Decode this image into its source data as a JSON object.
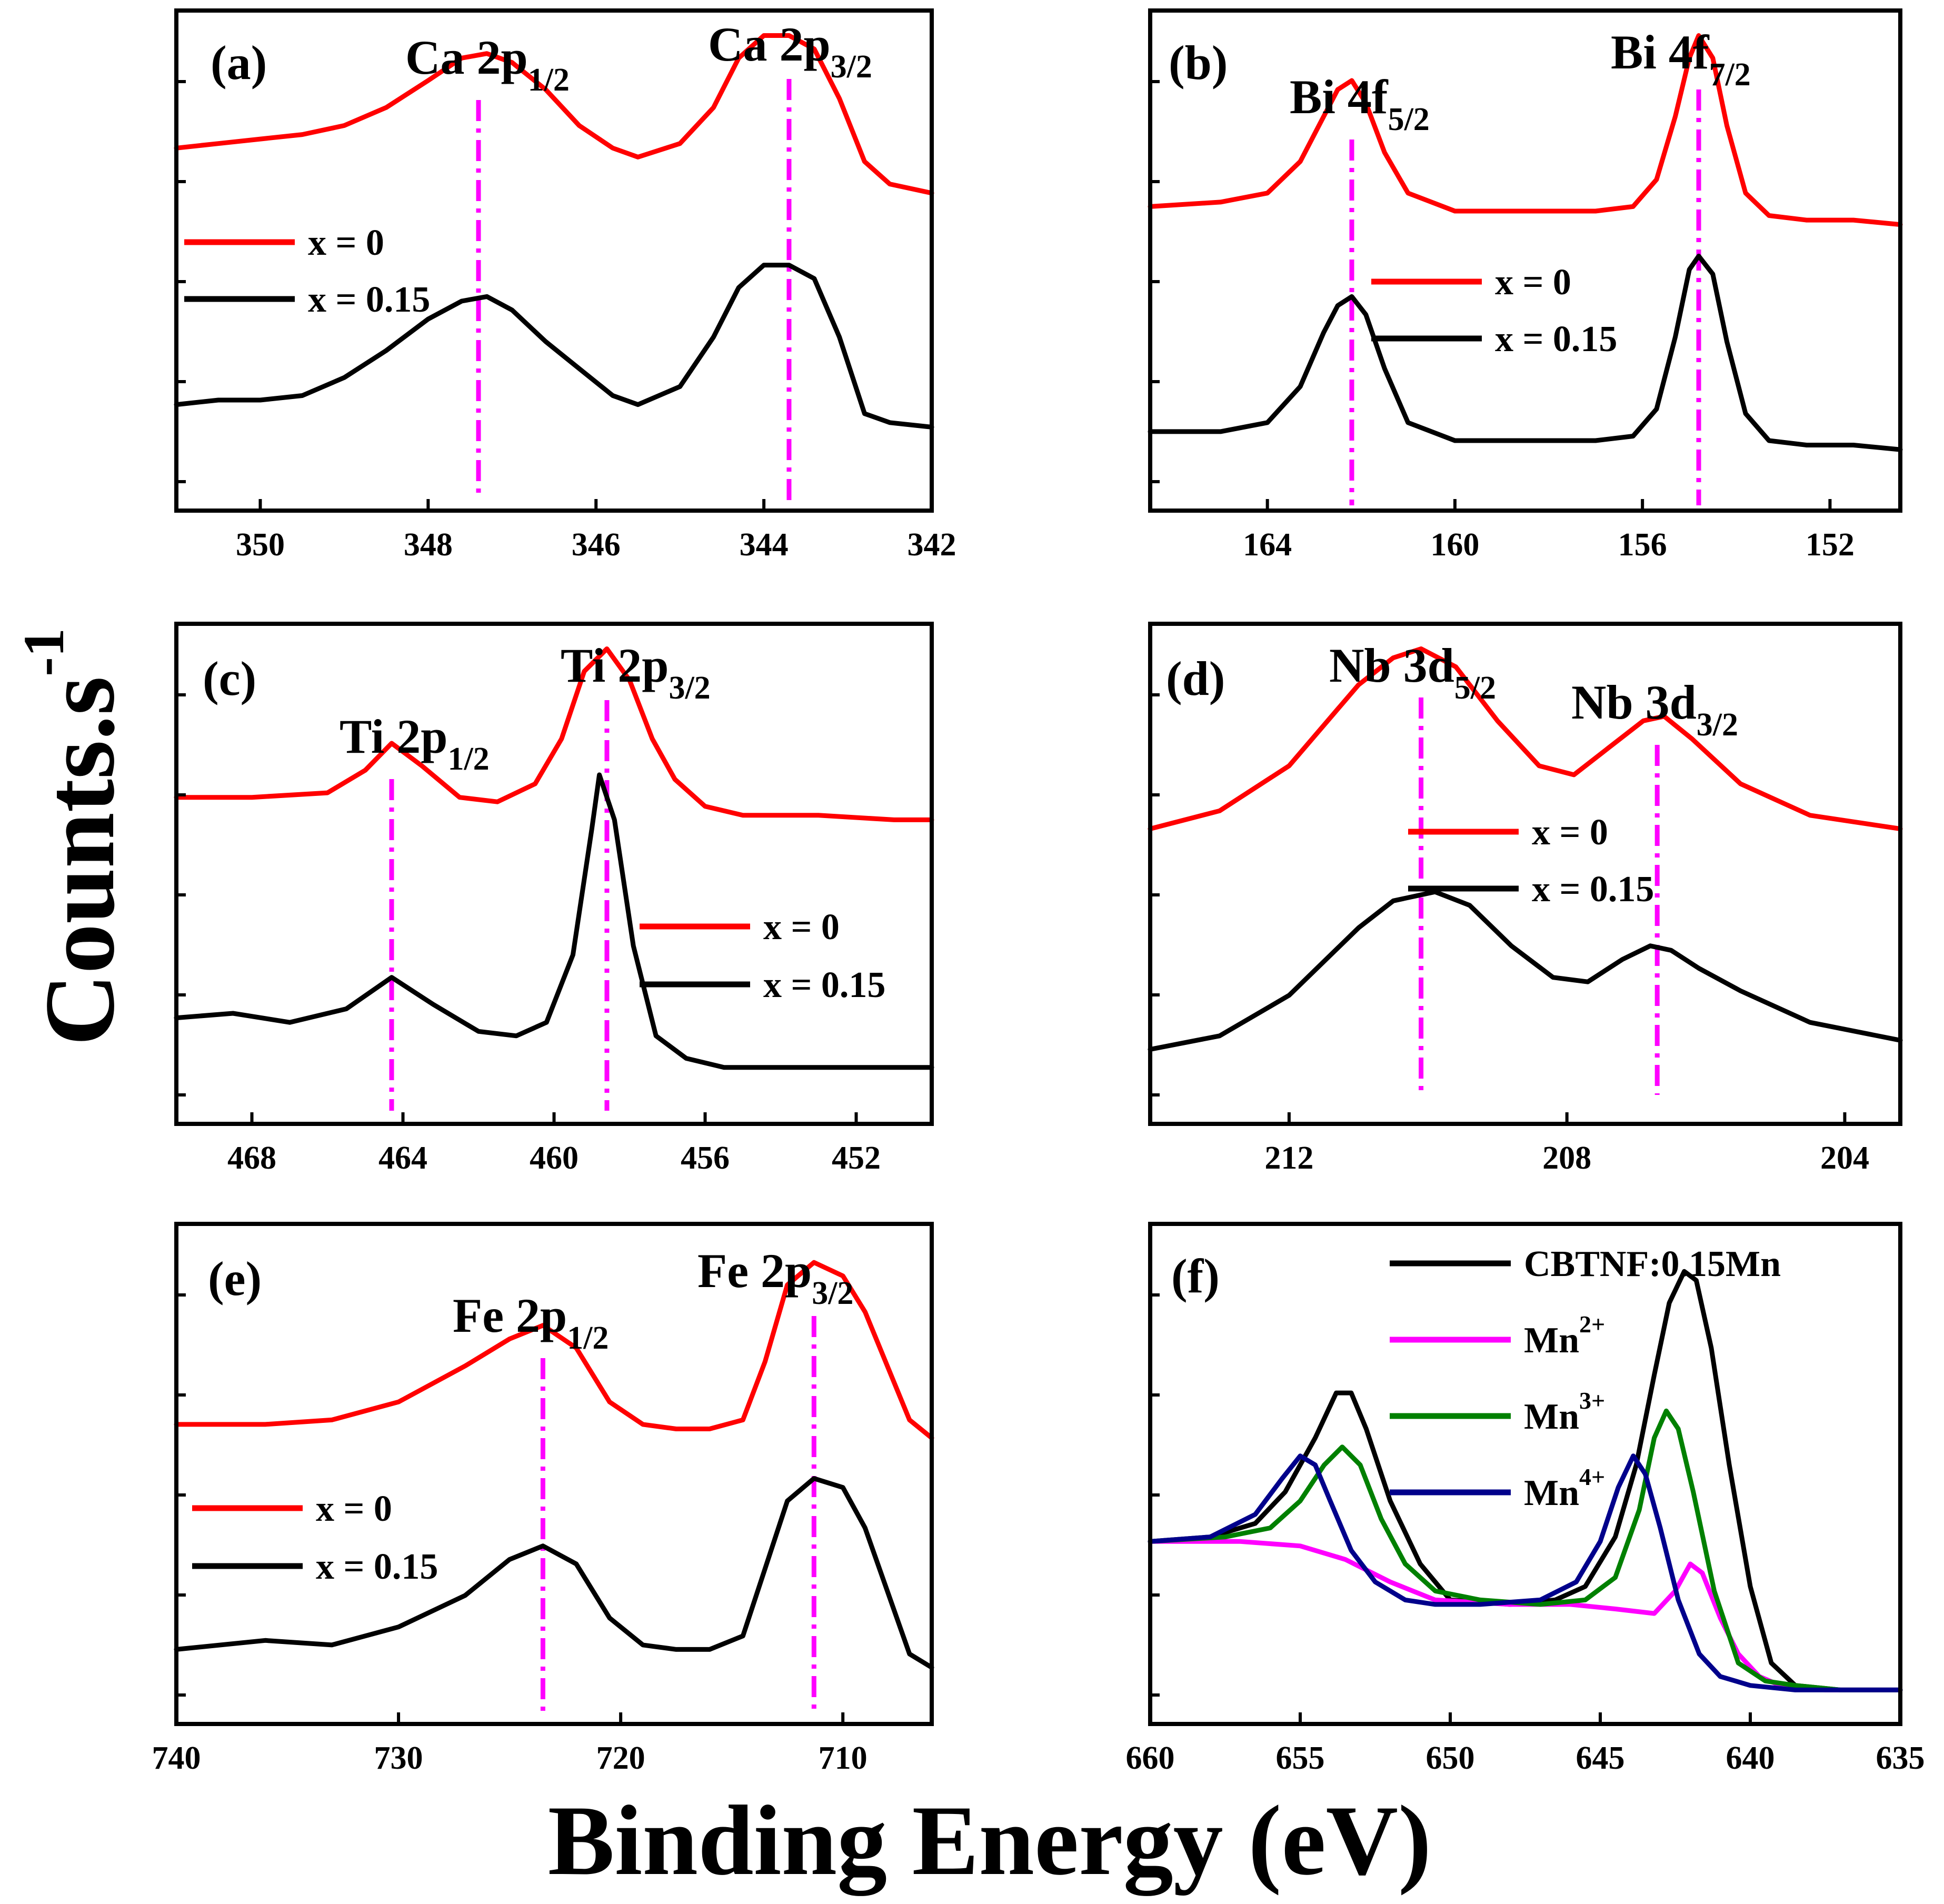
{
  "chart_data": {
    "type": "line",
    "xlabel": "Binding Energy (eV)",
    "ylabel": "Counts.s",
    "ylabel_superscript": "-1",
    "colors": {
      "x0": "#ff0000",
      "x015": "#000000",
      "mn2": "#ff00ff",
      "mn3": "#008000",
      "mn4": "#00008b",
      "ref": "#ff00ff"
    },
    "panels": [
      {
        "id": "a",
        "label": "(a)",
        "xlim": [
          351,
          342
        ],
        "ylim": [
          0,
          1
        ],
        "xticks": [
          350,
          348,
          346,
          344,
          342
        ],
        "tick_labels": [
          "350",
          "348",
          "346",
          "344",
          "342"
        ],
        "peaks": [
          {
            "base": "Ca 2p",
            "sub": "1/2",
            "x": 347.4
          },
          {
            "base": "Ca 2p",
            "sub": "3/2",
            "x": 343.7
          }
        ],
        "legend": [
          "x = 0",
          "x = 0.15"
        ],
        "series": [
          {
            "name": "x = 0",
            "x": [
              351,
              350.5,
              350,
              349.5,
              349,
              348.5,
              348,
              347.6,
              347.3,
              347,
              346.6,
              346.2,
              345.8,
              345.5,
              345,
              344.6,
              344.3,
              344,
              343.7,
              343.4,
              343.1,
              342.8,
              342.5,
              342
            ],
            "y": [
              0.75,
              0.76,
              0.77,
              0.78,
              0.8,
              0.84,
              0.9,
              0.95,
              0.96,
              0.94,
              0.88,
              0.8,
              0.75,
              0.73,
              0.76,
              0.84,
              0.95,
              1.0,
              1.0,
              0.97,
              0.86,
              0.72,
              0.67,
              0.65
            ]
          },
          {
            "name": "x = 0.15",
            "x": [
              351,
              350.5,
              350,
              349.5,
              349,
              348.5,
              348,
              347.6,
              347.3,
              347,
              346.6,
              346.2,
              345.8,
              345.5,
              345,
              344.6,
              344.3,
              344,
              343.7,
              343.4,
              343.1,
              342.8,
              342.5,
              342
            ],
            "y": [
              0.18,
              0.19,
              0.19,
              0.2,
              0.24,
              0.3,
              0.37,
              0.41,
              0.42,
              0.39,
              0.32,
              0.26,
              0.2,
              0.18,
              0.22,
              0.33,
              0.44,
              0.49,
              0.49,
              0.46,
              0.33,
              0.16,
              0.14,
              0.13
            ]
          }
        ]
      },
      {
        "id": "b",
        "label": "(b)",
        "xlim": [
          166.5,
          150.5
        ],
        "ylim": [
          0,
          1
        ],
        "xticks": [
          164,
          160,
          156,
          152
        ],
        "tick_labels": [
          "164",
          "160",
          "156",
          "152"
        ],
        "peaks": [
          {
            "base": "Bi 4f",
            "sub": "5/2",
            "x": 162.2
          },
          {
            "base": "Bi 4f",
            "sub": "7/2",
            "x": 154.8
          }
        ],
        "legend": [
          "x = 0",
          "x = 0.15"
        ],
        "series": [
          {
            "name": "x = 0",
            "x": [
              166.5,
              165,
              164,
              163.3,
              162.8,
              162.5,
              162.2,
              161.9,
              161.5,
              161,
              160,
              158,
              157,
              156.2,
              155.7,
              155.3,
              155,
              154.8,
              154.5,
              154.2,
              153.8,
              153.3,
              152.5,
              151.5,
              150.5
            ],
            "y": [
              0.62,
              0.63,
              0.65,
              0.72,
              0.82,
              0.88,
              0.9,
              0.85,
              0.74,
              0.65,
              0.61,
              0.61,
              0.61,
              0.62,
              0.68,
              0.82,
              0.95,
              1.0,
              0.95,
              0.8,
              0.65,
              0.6,
              0.59,
              0.59,
              0.58
            ]
          },
          {
            "name": "x = 0.15",
            "x": [
              166.5,
              165,
              164,
              163.3,
              162.8,
              162.5,
              162.2,
              161.9,
              161.5,
              161,
              160,
              158,
              157,
              156.2,
              155.7,
              155.3,
              155,
              154.8,
              154.5,
              154.2,
              153.8,
              153.3,
              152.5,
              151.5,
              150.5
            ],
            "y": [
              0.12,
              0.12,
              0.14,
              0.22,
              0.34,
              0.4,
              0.42,
              0.38,
              0.26,
              0.14,
              0.1,
              0.1,
              0.1,
              0.11,
              0.17,
              0.33,
              0.48,
              0.51,
              0.47,
              0.32,
              0.16,
              0.1,
              0.09,
              0.09,
              0.08
            ]
          }
        ]
      },
      {
        "id": "c",
        "label": "(c)",
        "xlim": [
          470,
          450
        ],
        "ylim": [
          0,
          1
        ],
        "xticks": [
          468,
          464,
          460,
          456,
          452
        ],
        "tick_labels": [
          "468",
          "464",
          "460",
          "456",
          "452"
        ],
        "peaks": [
          {
            "base": "Ti 2p",
            "sub": "1/2",
            "x": 464.3
          },
          {
            "base": "Ti 2p",
            "sub": "3/2",
            "x": 458.6
          }
        ],
        "legend": [
          "x = 0",
          "x = 0.15"
        ],
        "series": [
          {
            "name": "x = 0",
            "x": [
              470,
              468,
              466,
              465,
              464.3,
              463.5,
              462.5,
              461.5,
              460.5,
              459.8,
              459.2,
              458.6,
              458,
              457.4,
              456.8,
              456,
              455,
              453,
              451,
              450
            ],
            "y": [
              0.67,
              0.67,
              0.68,
              0.73,
              0.79,
              0.74,
              0.67,
              0.66,
              0.7,
              0.8,
              0.95,
              1.0,
              0.93,
              0.8,
              0.71,
              0.65,
              0.63,
              0.63,
              0.62,
              0.62
            ]
          },
          {
            "name": "x = 0.15",
            "x": [
              470,
              468.5,
              467,
              465.5,
              464.3,
              463.2,
              462,
              461,
              460.2,
              459.5,
              459,
              458.8,
              458.4,
              457.9,
              457.3,
              456.5,
              455.5,
              453,
              451,
              450
            ],
            "y": [
              0.18,
              0.19,
              0.17,
              0.2,
              0.27,
              0.21,
              0.15,
              0.14,
              0.17,
              0.32,
              0.6,
              0.72,
              0.62,
              0.34,
              0.14,
              0.09,
              0.07,
              0.07,
              0.07,
              0.07
            ]
          }
        ]
      },
      {
        "id": "d",
        "label": "(d)",
        "xlim": [
          214,
          203.2
        ],
        "ylim": [
          0,
          1
        ],
        "xticks": [
          212,
          208,
          204
        ],
        "tick_labels": [
          "212",
          "208",
          "204"
        ],
        "peaks": [
          {
            "base": "Nb 3d",
            "sub": "5/2",
            "x": 210.1
          },
          {
            "base": "Nb 3d",
            "sub": "3/2",
            "x": 206.7
          }
        ],
        "legend": [
          "x = 0",
          "x = 0.15"
        ],
        "series": [
          {
            "name": "x = 0",
            "x": [
              214,
              213,
              212,
              211,
              210.5,
              210.1,
              209.6,
              209,
              208.4,
              207.9,
              207.4,
              206.9,
              206.6,
              206.2,
              205.5,
              204.5,
              203.2
            ],
            "y": [
              0.6,
              0.64,
              0.74,
              0.92,
              0.98,
              1.0,
              0.96,
              0.84,
              0.74,
              0.72,
              0.78,
              0.84,
              0.85,
              0.8,
              0.7,
              0.63,
              0.6
            ]
          },
          {
            "name": "x = 0.15",
            "x": [
              214,
              213,
              212,
              211,
              210.5,
              209.9,
              209.4,
              208.8,
              208.2,
              207.7,
              207.2,
              206.8,
              206.5,
              206.1,
              205.5,
              204.5,
              203.2
            ],
            "y": [
              0.11,
              0.14,
              0.23,
              0.38,
              0.44,
              0.46,
              0.43,
              0.34,
              0.27,
              0.26,
              0.31,
              0.34,
              0.33,
              0.29,
              0.24,
              0.17,
              0.13
            ]
          }
        ]
      },
      {
        "id": "e",
        "label": "(e)",
        "xlim": [
          740,
          706
        ],
        "ylim": [
          0,
          1
        ],
        "xticks": [
          740,
          730,
          720,
          710
        ],
        "tick_labels": [
          "740",
          "730",
          "720",
          "710"
        ],
        "peaks": [
          {
            "base": "Fe 2p",
            "sub": "1/2",
            "x": 723.5
          },
          {
            "base": "Fe 2p",
            "sub": "3/2",
            "x": 711.3
          }
        ],
        "legend": [
          "x = 0",
          "x = 0.15"
        ],
        "series": [
          {
            "name": "x = 0",
            "x": [
              740,
              736,
              733,
              730,
              727,
              725,
              723.5,
              722,
              720.5,
              719,
              717.5,
              716,
              714.5,
              713.5,
              712.5,
              711.3,
              710,
              709,
              708,
              707,
              706
            ],
            "y": [
              0.61,
              0.61,
              0.62,
              0.66,
              0.74,
              0.8,
              0.83,
              0.78,
              0.66,
              0.61,
              0.6,
              0.6,
              0.62,
              0.75,
              0.92,
              0.97,
              0.94,
              0.86,
              0.74,
              0.62,
              0.58
            ]
          },
          {
            "name": "x = 0.15",
            "x": [
              740,
              736,
              733,
              730,
              727,
              725,
              723.5,
              722,
              720.5,
              719,
              717.5,
              716,
              714.5,
              713.5,
              712.5,
              711.3,
              710,
              709,
              708,
              707,
              706
            ],
            "y": [
              0.11,
              0.13,
              0.12,
              0.16,
              0.23,
              0.31,
              0.34,
              0.3,
              0.18,
              0.12,
              0.11,
              0.11,
              0.14,
              0.29,
              0.44,
              0.49,
              0.47,
              0.38,
              0.24,
              0.1,
              0.07
            ]
          }
        ]
      },
      {
        "id": "f",
        "label": "(f)",
        "xlim": [
          660,
          635
        ],
        "ylim": [
          0,
          1
        ],
        "xticks": [
          660,
          655,
          650,
          645,
          640,
          635
        ],
        "tick_labels": [
          "660",
          "655",
          "650",
          "645",
          "640",
          "635"
        ],
        "legend": [
          "CBTNF:0.15Mn",
          "Mn",
          "Mn",
          "Mn"
        ],
        "legend_superscripts": [
          "",
          "2+",
          "3+",
          "4+"
        ],
        "series": [
          {
            "name": "CBTNF:0.15Mn",
            "x": [
              660,
              658,
              656.5,
              655.5,
              654.5,
              653.8,
              653.3,
              652.8,
              652,
              651,
              650,
              648,
              646.5,
              645.5,
              644.5,
              643.8,
              643.2,
              642.7,
              642.2,
              641.8,
              641.3,
              640.7,
              640,
              639.3,
              638.5,
              637,
              635
            ],
            "y": [
              0.35,
              0.36,
              0.39,
              0.46,
              0.58,
              0.68,
              0.68,
              0.6,
              0.44,
              0.3,
              0.22,
              0.21,
              0.22,
              0.25,
              0.36,
              0.52,
              0.72,
              0.88,
              0.95,
              0.93,
              0.78,
              0.52,
              0.25,
              0.08,
              0.03,
              0.02,
              0.02
            ]
          },
          {
            "name": "Mn2+",
            "x": [
              660,
              657,
              655,
              653.5,
              652,
              650.5,
              648,
              646,
              644.5,
              643.2,
              642.5,
              642,
              641.6,
              641,
              640.4,
              639.7,
              639,
              637.5,
              635
            ],
            "y": [
              0.35,
              0.35,
              0.34,
              0.31,
              0.26,
              0.22,
              0.21,
              0.21,
              0.2,
              0.19,
              0.24,
              0.3,
              0.28,
              0.18,
              0.1,
              0.05,
              0.03,
              0.02,
              0.02
            ]
          },
          {
            "name": "Mn3+",
            "x": [
              660,
              657.5,
              656,
              655,
              654.2,
              653.6,
              653,
              652.3,
              651.5,
              650.5,
              649,
              647,
              645.5,
              644.5,
              643.7,
              643.2,
              642.8,
              642.4,
              641.9,
              641.2,
              640.4,
              639.5,
              638.5,
              637,
              635
            ],
            "y": [
              0.35,
              0.36,
              0.38,
              0.44,
              0.52,
              0.56,
              0.52,
              0.4,
              0.3,
              0.24,
              0.22,
              0.21,
              0.22,
              0.27,
              0.42,
              0.58,
              0.64,
              0.6,
              0.46,
              0.24,
              0.08,
              0.04,
              0.03,
              0.02,
              0.02
            ]
          },
          {
            "name": "Mn4+",
            "x": [
              660,
              658,
              656.5,
              655.6,
              655,
              654.5,
              654,
              653.3,
              652.5,
              651.5,
              650.5,
              649,
              647,
              645.8,
              645,
              644.4,
              643.9,
              643.5,
              643,
              642.4,
              641.7,
              641,
              640,
              638.5,
              635
            ],
            "y": [
              0.35,
              0.36,
              0.41,
              0.49,
              0.54,
              0.52,
              0.44,
              0.33,
              0.26,
              0.22,
              0.21,
              0.21,
              0.22,
              0.26,
              0.35,
              0.47,
              0.54,
              0.5,
              0.38,
              0.22,
              0.1,
              0.05,
              0.03,
              0.02,
              0.02
            ]
          }
        ]
      }
    ]
  }
}
